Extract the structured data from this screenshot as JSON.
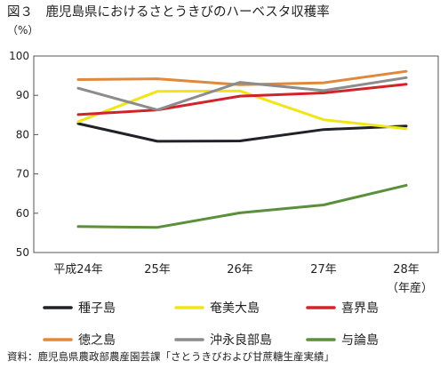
{
  "figure": {
    "title": "図３　鹿児島県におけるさとうきびのハーベスタ収穫率",
    "source": "資料：鹿児島県農政部農産園芸課「さとうきびおよび甘蔗糖生産実績」"
  },
  "chart_data": {
    "type": "line",
    "title": "図３　鹿児島県におけるさとうきびのハーベスタ収穫率",
    "ylabel": "（%）",
    "xlabel": "（年産）",
    "ylim": [
      50,
      100
    ],
    "yticks": [
      50,
      60,
      70,
      80,
      90,
      100
    ],
    "categories": [
      "平成24年",
      "25年",
      "26年",
      "27年",
      "28年"
    ],
    "grid": false,
    "legend_position": "bottom",
    "series": [
      {
        "name": "種子島",
        "color": "#1f2226",
        "values": [
          82.8,
          78.3,
          78.4,
          81.3,
          82.2
        ]
      },
      {
        "name": "奄美大島",
        "color": "#f0e617",
        "values": [
          83.3,
          91.0,
          91.1,
          83.8,
          81.5
        ]
      },
      {
        "name": "喜界島",
        "color": "#d2232a",
        "values": [
          85.1,
          86.3,
          89.8,
          90.6,
          92.8
        ]
      },
      {
        "name": "徳之島",
        "color": "#e0883c",
        "values": [
          94.0,
          94.2,
          92.7,
          93.2,
          96.1
        ]
      },
      {
        "name": "沖永良部島",
        "color": "#8c8c8c",
        "values": [
          91.8,
          86.3,
          93.3,
          91.2,
          94.5
        ]
      },
      {
        "name": "与論島",
        "color": "#5a8f3c",
        "values": [
          56.6,
          56.4,
          60.1,
          62.1,
          67.1
        ]
      }
    ]
  }
}
